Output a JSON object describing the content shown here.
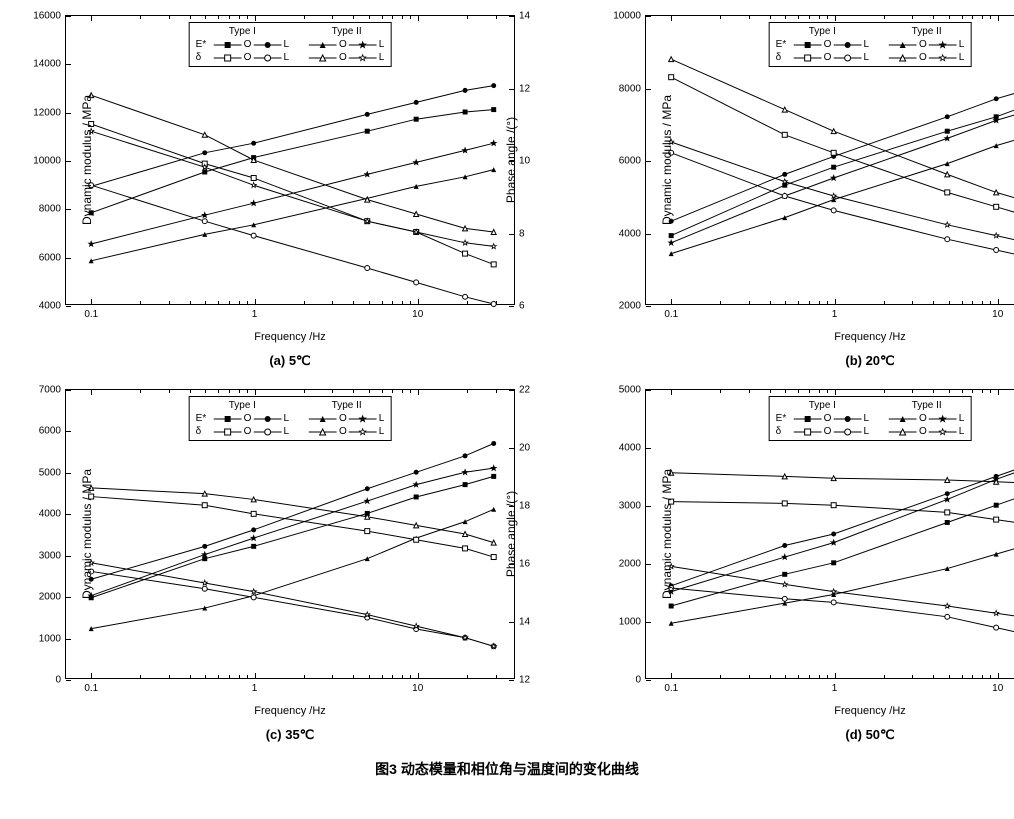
{
  "figure_caption": "图3 动态模量和相位角与温度间的变化曲线",
  "common": {
    "x_label": "Frequency /Hz",
    "y_left_label": "Dynamic modulus / MPa",
    "y_right_label": "Phase angle /(°)",
    "x_scale": "log",
    "x_ticks": [
      0.1,
      1,
      10
    ],
    "x_range": [
      0.07,
      40
    ],
    "freq_points": [
      0.1,
      0.5,
      1,
      5,
      10,
      20,
      30
    ],
    "line_color": "#000000",
    "line_width": 1,
    "background": "#ffffff",
    "font_family": "Arial",
    "marker_size": 5,
    "legend": {
      "type1_title": "Type I",
      "type2_title": "Type II",
      "rows": [
        {
          "label": "E*",
          "t1_o": "sq_f",
          "t1_l": "ci_f",
          "t2_o": "tu_f",
          "t2_l": "st_f"
        },
        {
          "label": "δ",
          "t1_o": "sq_o",
          "t1_l": "ci_o",
          "t2_o": "tu_o",
          "t2_l": "st_o"
        }
      ]
    }
  },
  "panels": [
    {
      "id": "a",
      "subtitle": "(a)  5℃",
      "y_left": {
        "min": 4000,
        "max": 16000,
        "step": 2000
      },
      "y_right": {
        "min": 6,
        "max": 14,
        "step": 2
      },
      "series_left": {
        "E_t1_O": {
          "marker": "sq_f",
          "y": [
            7800,
            9500,
            10100,
            11200,
            11700,
            12000,
            12100
          ]
        },
        "E_t1_L": {
          "marker": "ci_f",
          "y": [
            8900,
            10300,
            10700,
            11900,
            12400,
            12900,
            13100
          ]
        },
        "E_t2_O": {
          "marker": "tu_f",
          "y": [
            5800,
            6900,
            7300,
            8400,
            8900,
            9300,
            9600
          ]
        },
        "E_t2_L": {
          "marker": "st_f",
          "y": [
            6500,
            7700,
            8200,
            9400,
            9900,
            10400,
            10700
          ]
        }
      },
      "series_right": {
        "d_t1_O": {
          "marker": "sq_o",
          "y": [
            11.0,
            9.9,
            9.5,
            8.3,
            8.0,
            7.4,
            7.1
          ]
        },
        "d_t1_L": {
          "marker": "ci_o",
          "y": [
            9.3,
            8.3,
            7.9,
            7.0,
            6.6,
            6.2,
            6.0
          ]
        },
        "d_t2_O": {
          "marker": "tu_o",
          "y": [
            11.8,
            10.7,
            10.0,
            8.9,
            8.5,
            8.1,
            8.0
          ]
        },
        "d_t2_L": {
          "marker": "st_o",
          "y": [
            10.8,
            9.8,
            9.3,
            8.3,
            8.0,
            7.7,
            7.6
          ]
        }
      }
    },
    {
      "id": "b",
      "subtitle": "(b)  20℃",
      "y_left": {
        "min": 2000,
        "max": 10000,
        "step": 2000
      },
      "y_right": {
        "min": 10,
        "max": 18,
        "step": 2
      },
      "series_left": {
        "E_t1_O": {
          "marker": "sq_f",
          "y": [
            3900,
            5300,
            5800,
            6800,
            7200,
            7700,
            8000
          ]
        },
        "E_t1_L": {
          "marker": "ci_f",
          "y": [
            4300,
            5600,
            6100,
            7200,
            7700,
            8100,
            8400
          ]
        },
        "E_t2_O": {
          "marker": "tu_f",
          "y": [
            3400,
            4400,
            4900,
            5900,
            6400,
            6800,
            7100
          ]
        },
        "E_t2_L": {
          "marker": "st_f",
          "y": [
            3700,
            5000,
            5500,
            6600,
            7100,
            7500,
            7800
          ]
        }
      },
      "series_right": {
        "d_t1_O": {
          "marker": "sq_o",
          "y": [
            16.3,
            14.7,
            14.2,
            13.1,
            12.7,
            12.3,
            12.1
          ]
        },
        "d_t1_L": {
          "marker": "ci_o",
          "y": [
            14.2,
            13.0,
            12.6,
            11.8,
            11.5,
            11.2,
            11.1
          ]
        },
        "d_t2_O": {
          "marker": "tu_o",
          "y": [
            16.8,
            15.4,
            14.8,
            13.6,
            13.1,
            12.7,
            12.5
          ]
        },
        "d_t2_L": {
          "marker": "st_o",
          "y": [
            14.5,
            13.4,
            13.0,
            12.2,
            11.9,
            11.6,
            11.5
          ]
        }
      }
    },
    {
      "id": "c",
      "subtitle": "(c)  35℃",
      "y_left": {
        "min": 0,
        "max": 7000,
        "step": 1000
      },
      "y_right": {
        "min": 12,
        "max": 22,
        "step": 2
      },
      "series_left": {
        "E_t1_O": {
          "marker": "sq_f",
          "y": [
            1950,
            2900,
            3200,
            4000,
            4400,
            4700,
            4900
          ]
        },
        "E_t1_L": {
          "marker": "ci_f",
          "y": [
            2400,
            3200,
            3600,
            4600,
            5000,
            5400,
            5700
          ]
        },
        "E_t2_O": {
          "marker": "tu_f",
          "y": [
            1200,
            1700,
            2000,
            2900,
            3400,
            3800,
            4100
          ]
        },
        "E_t2_L": {
          "marker": "st_f",
          "y": [
            2000,
            3000,
            3400,
            4300,
            4700,
            5000,
            5100
          ]
        }
      },
      "series_right": {
        "d_t1_O": {
          "marker": "sq_o",
          "y": [
            18.3,
            18.0,
            17.7,
            17.1,
            16.8,
            16.5,
            16.2
          ]
        },
        "d_t1_L": {
          "marker": "ci_o",
          "y": [
            15.7,
            15.1,
            14.8,
            14.1,
            13.7,
            13.4,
            13.1
          ]
        },
        "d_t2_O": {
          "marker": "tu_o",
          "y": [
            18.6,
            18.4,
            18.2,
            17.6,
            17.3,
            17.0,
            16.7
          ]
        },
        "d_t2_L": {
          "marker": "st_o",
          "y": [
            16.0,
            15.3,
            15.0,
            14.2,
            13.8,
            13.4,
            13.1
          ]
        }
      }
    },
    {
      "id": "d",
      "subtitle": "(d)  50℃",
      "y_left": {
        "min": 0,
        "max": 5000,
        "step": 1000
      },
      "y_right": {
        "min": 14,
        "max": 22,
        "step": 2
      },
      "series_left": {
        "E_t1_O": {
          "marker": "sq_f",
          "y": [
            1250,
            1800,
            2000,
            2700,
            3000,
            3300,
            3550
          ]
        },
        "E_t1_L": {
          "marker": "ci_f",
          "y": [
            1600,
            2300,
            2500,
            3200,
            3500,
            3800,
            4050
          ]
        },
        "E_t2_O": {
          "marker": "tu_f",
          "y": [
            950,
            1300,
            1450,
            1900,
            2150,
            2400,
            2600
          ]
        },
        "E_t2_L": {
          "marker": "st_f",
          "y": [
            1500,
            2100,
            2350,
            3100,
            3450,
            3750,
            3950
          ]
        }
      },
      "series_right": {
        "d_t1_O": {
          "marker": "sq_o",
          "y": [
            18.9,
            18.85,
            18.8,
            18.6,
            18.4,
            18.2,
            18.0
          ]
        },
        "d_t1_L": {
          "marker": "ci_o",
          "y": [
            16.5,
            16.2,
            16.1,
            15.7,
            15.4,
            15.1,
            14.9
          ]
        },
        "d_t2_O": {
          "marker": "tu_o",
          "y": [
            19.7,
            19.6,
            19.55,
            19.5,
            19.45,
            19.4,
            19.35
          ]
        },
        "d_t2_L": {
          "marker": "st_o",
          "y": [
            17.1,
            16.6,
            16.4,
            16.0,
            15.8,
            15.6,
            15.5
          ]
        }
      }
    }
  ]
}
